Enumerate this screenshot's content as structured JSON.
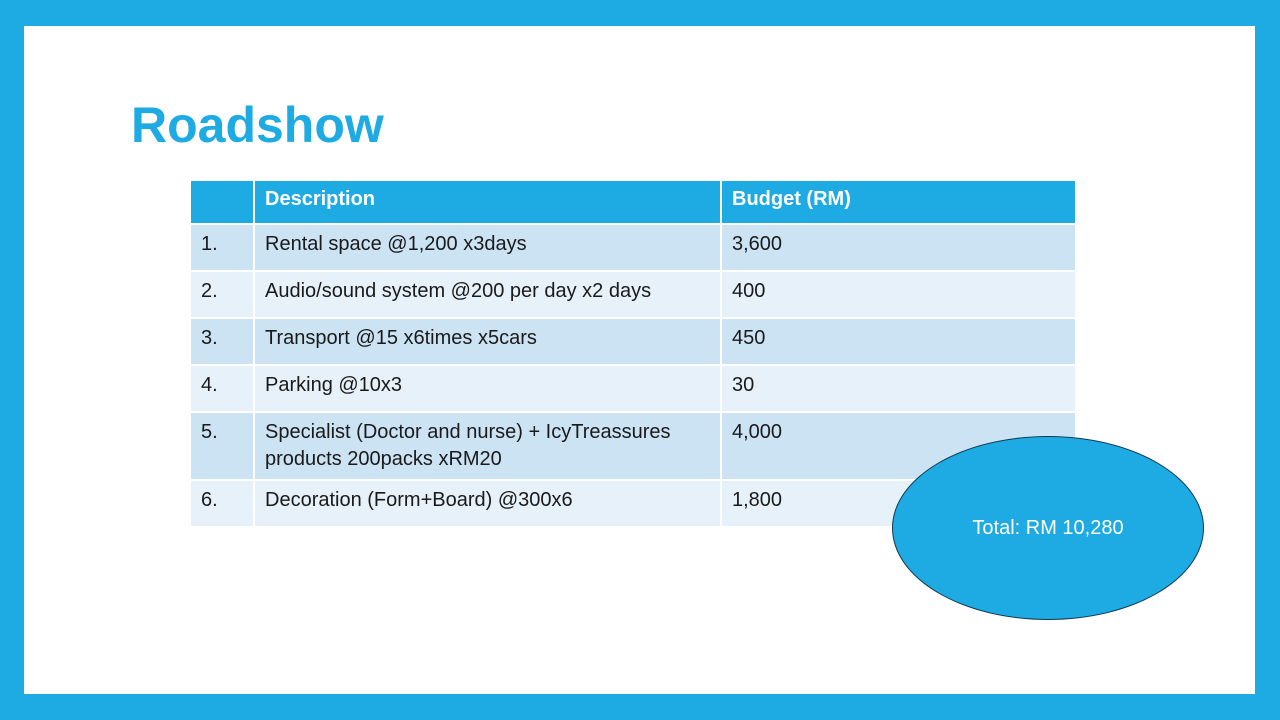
{
  "title": "Roadshow",
  "colors": {
    "accent": "#1eaae2",
    "row_odd": "#cce3f4",
    "row_even": "#e6f1fa"
  },
  "table": {
    "headers": [
      "",
      "Description",
      "Budget (RM)"
    ],
    "rows": [
      {
        "num": "1.",
        "description": "Rental space @1,200 x3days",
        "budget": "3,600"
      },
      {
        "num": "2.",
        "description": "Audio/sound system @200 per day x2 days",
        "budget": "400"
      },
      {
        "num": "3.",
        "description": "Transport @15 x6times x5cars",
        "budget": "450"
      },
      {
        "num": "4.",
        "description": "Parking @10x3",
        "budget": "30"
      },
      {
        "num": "5.",
        "description": "Specialist (Doctor and nurse) + IcyTreassures products 200packs xRM20",
        "budget": "4,000"
      },
      {
        "num": "6.",
        "description": "Decoration (Form+Board) @300x6",
        "budget": "1,800"
      }
    ]
  },
  "total": "Total: RM 10,280"
}
